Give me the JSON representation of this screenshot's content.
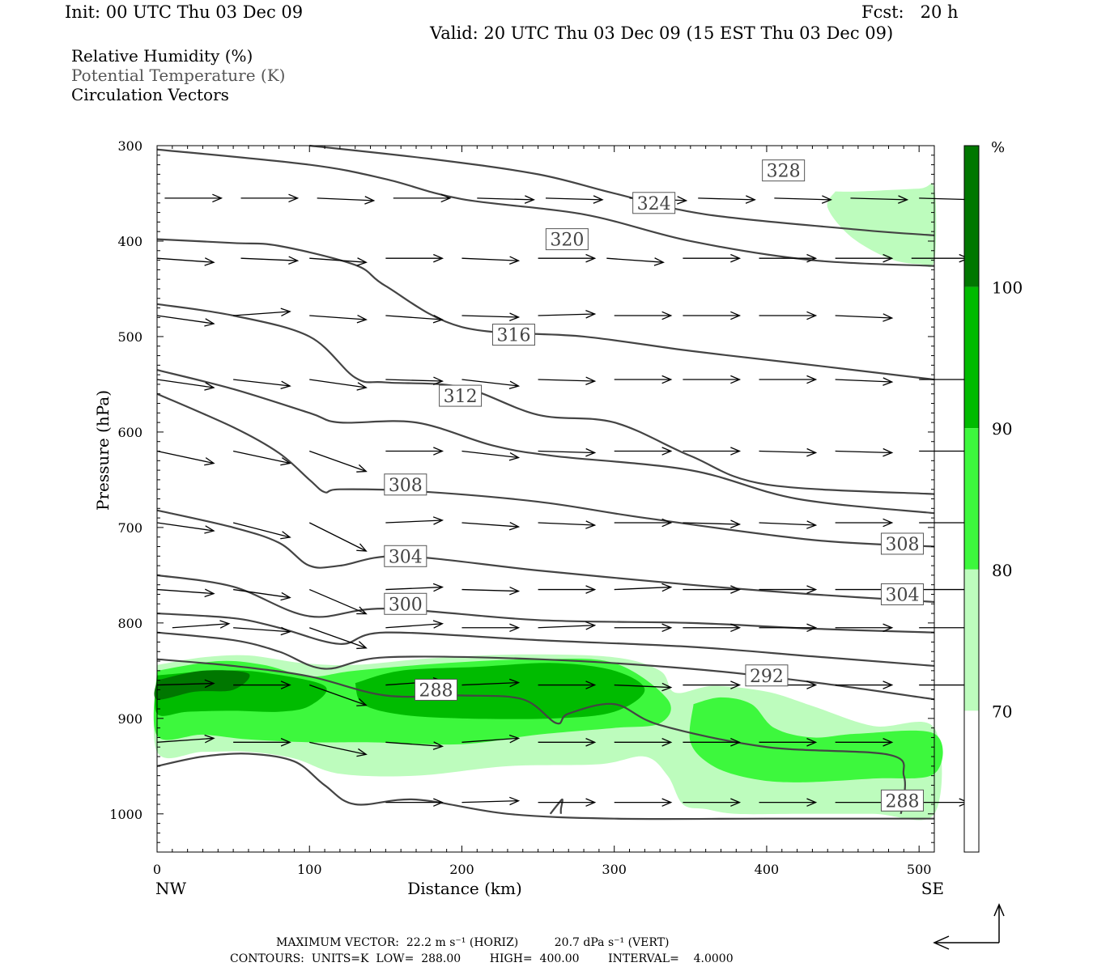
{
  "header": {
    "init": "Init: 00 UTC Thu 03 Dec 09",
    "fcst": "Fcst:   20 h",
    "valid": "Valid: 20 UTC Thu 03 Dec 09 (15 EST Thu 03 Dec 09)"
  },
  "fields": {
    "rh": "Relative Humidity (%)",
    "theta": "Potential Temperature (K)",
    "vectors": "Circulation Vectors"
  },
  "footer": {
    "max_vector": "MAXIMUM VECTOR:  22.2 m s⁻¹ (HORIZ)          20.7 dPa s⁻¹ (VERT)",
    "contours": "CONTOURS:  UNITS=K  LOW=  288.00        HIGH=  400.00        INTERVAL=    4.0000"
  },
  "colors": {
    "rh70": "#bdfcbd",
    "rh80": "#3df83d",
    "rh90": "#00bb00",
    "rh100": "#007700",
    "contour": "#444444",
    "vector": "#000000"
  },
  "chart_data": {
    "type": "contour-cross-section",
    "xlabel": "Distance (km)",
    "ylabel": "Pressure (hPa)",
    "x_ticks": [
      0,
      100,
      200,
      300,
      400,
      500
    ],
    "x_tick_labels": [
      "0",
      "100",
      "200",
      "300",
      "400",
      "500"
    ],
    "y_ticks": [
      300,
      400,
      500,
      600,
      700,
      800,
      900,
      1000
    ],
    "y_tick_labels": [
      "300",
      "400",
      "500",
      "600",
      "700",
      "800",
      "900",
      "1000"
    ],
    "xlim": [
      0,
      510
    ],
    "ylim": [
      1040,
      300
    ],
    "x_end_labels": {
      "left": "NW",
      "right": "SE"
    },
    "colorbar": {
      "unit": "%",
      "levels": [
        70,
        80,
        90,
        100
      ],
      "level_labels": [
        "70",
        "80",
        "90",
        "100"
      ],
      "colors": [
        "#ffffff",
        "#bdfcbd",
        "#3df83d",
        "#00bb00",
        "#007700"
      ]
    },
    "rh_regions": [
      {
        "level": 70,
        "points": [
          [
            0,
            844
          ],
          [
            30,
            836
          ],
          [
            60,
            834
          ],
          [
            95,
            842
          ],
          [
            130,
            844
          ],
          [
            180,
            837
          ],
          [
            240,
            833
          ],
          [
            300,
            836
          ],
          [
            330,
            850
          ],
          [
            340,
            873
          ],
          [
            365,
            866
          ],
          [
            400,
            872
          ],
          [
            430,
            887
          ],
          [
            470,
            908
          ],
          [
            510,
            910
          ],
          [
            510,
            1000
          ],
          [
            470,
            1000
          ],
          [
            420,
            1000
          ],
          [
            380,
            1000
          ],
          [
            360,
            995
          ],
          [
            345,
            990
          ],
          [
            335,
            960
          ],
          [
            320,
            940
          ],
          [
            290,
            948
          ],
          [
            230,
            950
          ],
          [
            170,
            960
          ],
          [
            120,
            958
          ],
          [
            90,
            942
          ],
          [
            60,
            935
          ],
          [
            30,
            935
          ],
          [
            0,
            935
          ]
        ]
      },
      {
        "level": 80,
        "points": [
          [
            0,
            850
          ],
          [
            40,
            840
          ],
          [
            70,
            844
          ],
          [
            100,
            856
          ],
          [
            130,
            850
          ],
          [
            190,
            842
          ],
          [
            250,
            838
          ],
          [
            300,
            842
          ],
          [
            335,
            880
          ],
          [
            330,
            905
          ],
          [
            300,
            910
          ],
          [
            250,
            917
          ],
          [
            200,
            927
          ],
          [
            140,
            925
          ],
          [
            100,
            925
          ],
          [
            60,
            922
          ],
          [
            30,
            917
          ],
          [
            0,
            918
          ]
        ]
      },
      {
        "level": 80,
        "points": [
          [
            352,
            885
          ],
          [
            370,
            878
          ],
          [
            390,
            885
          ],
          [
            405,
            910
          ],
          [
            430,
            920
          ],
          [
            460,
            916
          ],
          [
            510,
            916
          ],
          [
            510,
            958
          ],
          [
            470,
            963
          ],
          [
            420,
            967
          ],
          [
            390,
            963
          ],
          [
            365,
            950
          ],
          [
            350,
            925
          ]
        ]
      },
      {
        "level": 90,
        "points": [
          [
            0,
            855
          ],
          [
            40,
            850
          ],
          [
            70,
            852
          ],
          [
            110,
            866
          ],
          [
            100,
            887
          ],
          [
            80,
            893
          ],
          [
            50,
            892
          ],
          [
            20,
            893
          ],
          [
            0,
            895
          ]
        ]
      },
      {
        "level": 90,
        "points": [
          [
            130,
            863
          ],
          [
            160,
            850
          ],
          [
            210,
            846
          ],
          [
            260,
            842
          ],
          [
            300,
            850
          ],
          [
            320,
            870
          ],
          [
            300,
            893
          ],
          [
            260,
            900
          ],
          [
            200,
            900
          ],
          [
            160,
            896
          ],
          [
            135,
            885
          ]
        ]
      },
      {
        "level": 100,
        "points": [
          [
            0,
            860
          ],
          [
            30,
            850
          ],
          [
            60,
            853
          ],
          [
            50,
            870
          ],
          [
            25,
            872
          ],
          [
            0,
            880
          ]
        ]
      },
      {
        "level": 70,
        "points": [
          [
            445,
            348
          ],
          [
            460,
            348
          ],
          [
            500,
            345
          ],
          [
            510,
            345
          ],
          [
            510,
            420
          ],
          [
            500,
            424
          ],
          [
            480,
            418
          ],
          [
            455,
            395
          ],
          [
            440,
            365
          ]
        ]
      }
    ],
    "theta_contours": [
      {
        "points": [
          [
            0,
            304
          ],
          [
            100,
            320
          ],
          [
            150,
            335
          ],
          [
            200,
            356
          ],
          [
            280,
            372
          ],
          [
            350,
            400
          ],
          [
            430,
            420
          ],
          [
            510,
            426
          ]
        ]
      },
      {
        "points": [
          [
            100,
            300
          ],
          [
            180,
            314
          ],
          [
            250,
            330
          ],
          [
            300,
            350
          ],
          [
            360,
            372
          ],
          [
            460,
            388
          ],
          [
            510,
            394
          ]
        ]
      },
      {
        "points": [
          [
            0,
            398
          ],
          [
            50,
            402
          ],
          [
            80,
            405
          ],
          [
            130,
            425
          ],
          [
            150,
            447
          ],
          [
            200,
            490
          ],
          [
            280,
            500
          ],
          [
            350,
            515
          ],
          [
            420,
            528
          ],
          [
            510,
            545
          ]
        ]
      },
      {
        "points": [
          [
            0,
            466
          ],
          [
            50,
            478
          ],
          [
            100,
            500
          ],
          [
            130,
            543
          ],
          [
            150,
            548
          ],
          [
            200,
            553
          ],
          [
            250,
            582
          ],
          [
            300,
            590
          ],
          [
            350,
            625
          ],
          [
            400,
            655
          ],
          [
            510,
            665
          ]
        ]
      },
      {
        "points": [
          [
            0,
            535
          ],
          [
            50,
            555
          ],
          [
            100,
            580
          ],
          [
            120,
            590
          ],
          [
            170,
            590
          ],
          [
            220,
            614
          ],
          [
            260,
            625
          ],
          [
            350,
            640
          ],
          [
            420,
            670
          ],
          [
            510,
            685
          ]
        ]
      },
      {
        "points": [
          [
            0,
            560
          ],
          [
            50,
            595
          ],
          [
            80,
            622
          ],
          [
            100,
            650
          ],
          [
            110,
            663
          ],
          [
            120,
            660
          ],
          [
            170,
            662
          ],
          [
            250,
            673
          ],
          [
            320,
            690
          ],
          [
            430,
            713
          ],
          [
            510,
            720
          ]
        ]
      },
      {
        "points": [
          [
            0,
            682
          ],
          [
            50,
            700
          ],
          [
            80,
            716
          ],
          [
            100,
            740
          ],
          [
            120,
            740
          ],
          [
            160,
            730
          ],
          [
            250,
            745
          ],
          [
            350,
            760
          ],
          [
            430,
            770
          ],
          [
            510,
            778
          ]
        ]
      },
      {
        "points": [
          [
            0,
            750
          ],
          [
            50,
            762
          ],
          [
            100,
            793
          ],
          [
            150,
            785
          ],
          [
            250,
            797
          ],
          [
            350,
            800
          ],
          [
            430,
            806
          ],
          [
            510,
            810
          ]
        ]
      },
      {
        "points": [
          [
            0,
            790
          ],
          [
            50,
            795
          ],
          [
            80,
            805
          ],
          [
            120,
            822
          ],
          [
            150,
            810
          ],
          [
            250,
            818
          ],
          [
            350,
            825
          ],
          [
            430,
            835
          ],
          [
            510,
            845
          ]
        ]
      },
      {
        "points": [
          [
            0,
            810
          ],
          [
            50,
            818
          ],
          [
            80,
            830
          ],
          [
            110,
            848
          ],
          [
            150,
            836
          ],
          [
            250,
            838
          ],
          [
            350,
            848
          ],
          [
            430,
            862
          ],
          [
            510,
            880
          ]
        ]
      },
      {
        "points": [
          [
            0,
            838
          ],
          [
            50,
            845
          ],
          [
            100,
            856
          ],
          [
            150,
            876
          ],
          [
            200,
            876
          ],
          [
            240,
            880
          ],
          [
            262,
            905
          ],
          [
            270,
            895
          ],
          [
            300,
            885
          ],
          [
            330,
            907
          ],
          [
            400,
            930
          ],
          [
            480,
            938
          ],
          [
            490,
            960
          ],
          [
            490,
            985
          ],
          [
            488,
            1000
          ]
        ]
      },
      {
        "points": [
          [
            0,
            950
          ],
          [
            30,
            940
          ],
          [
            60,
            937
          ],
          [
            90,
            945
          ],
          [
            110,
            970
          ],
          [
            130,
            990
          ],
          [
            170,
            985
          ],
          [
            230,
            1000
          ],
          [
            300,
            1005
          ],
          [
            400,
            1005
          ],
          [
            510,
            1005
          ]
        ]
      },
      {
        "points": [
          [
            258,
            1000
          ],
          [
            263,
            990
          ],
          [
            266,
            985
          ],
          [
            265,
            995
          ],
          [
            265,
            1000
          ]
        ]
      }
    ],
    "theta_labels": [
      {
        "x": 411,
        "p": 326,
        "text": "328"
      },
      {
        "x": 326,
        "p": 360,
        "text": "324"
      },
      {
        "x": 269,
        "p": 398,
        "text": "320"
      },
      {
        "x": 234,
        "p": 498,
        "text": "316"
      },
      {
        "x": 199,
        "p": 562,
        "text": "312"
      },
      {
        "x": 163,
        "p": 655,
        "text": "308"
      },
      {
        "x": 489,
        "p": 717,
        "text": "308"
      },
      {
        "x": 163,
        "p": 730,
        "text": "304"
      },
      {
        "x": 489,
        "p": 770,
        "text": "304"
      },
      {
        "x": 163,
        "p": 780,
        "text": "300"
      },
      {
        "x": 400,
        "p": 855,
        "text": "292"
      },
      {
        "x": 183,
        "p": 870,
        "text": "288"
      },
      {
        "x": 489,
        "p": 986,
        "text": "288"
      }
    ]
  }
}
